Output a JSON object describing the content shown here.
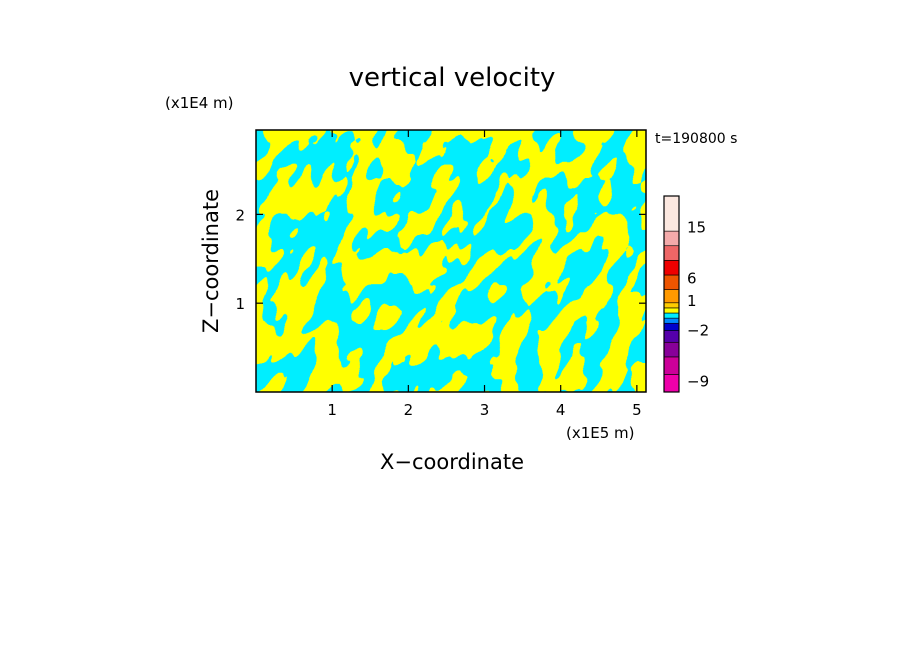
{
  "chart_data": {
    "type": "heatmap",
    "title": "vertical velocity",
    "xlabel": "X−coordinate",
    "ylabel": "Z−coordinate",
    "x_scale_label": "(x1E5 m)",
    "y_scale_label": "(x1E4 m)",
    "time_label": "t=190800 s",
    "xlim": [
      0,
      5.12
    ],
    "ylim": [
      0,
      2.95
    ],
    "x_ticks": [
      1,
      2,
      3,
      4,
      5
    ],
    "x_tick_labels": [
      "1",
      "2",
      "3",
      "4",
      "5"
    ],
    "y_ticks": [
      1,
      2
    ],
    "y_tick_labels": [
      "1",
      "2"
    ],
    "field_colors": {
      "positive": "#ffff00",
      "negative": "#00eeff"
    },
    "colorbar": {
      "levels": [
        -12,
        -9,
        -6,
        -4,
        -2,
        -1,
        0,
        1,
        2,
        4,
        6,
        9,
        12,
        15,
        18,
        24
      ],
      "colors": [
        "#ee00aa",
        "#cc0099",
        "#880099",
        "#5500aa",
        "#0000cc",
        "#0088ff",
        "#00eeff",
        "#ffff00",
        "#ffcc00",
        "#ff9900",
        "#ee5500",
        "#ee0000",
        "#ee6666",
        "#f4aaaa",
        "#fce8e0"
      ],
      "tick_values": [
        -9,
        -2,
        1,
        6,
        15
      ],
      "tick_labels": [
        "−9",
        "−2",
        "1",
        "6",
        "15"
      ]
    }
  }
}
